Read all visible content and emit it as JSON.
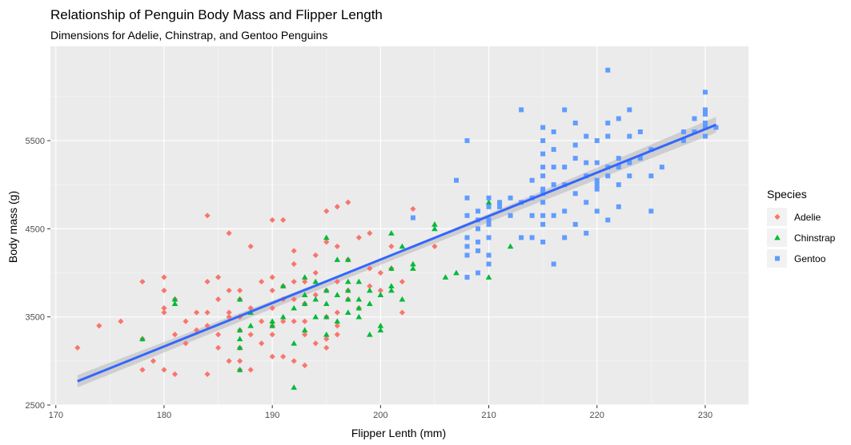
{
  "chart_data": {
    "type": "scatter",
    "title": "Relationship of Penguin Body Mass and Flipper Length",
    "subtitle": "Dimensions for Adelie, Chinstrap, and Gentoo Penguins",
    "xlabel": "Flipper Lenth (mm)",
    "ylabel": "Body mass (g)",
    "xlim": [
      169.5,
      234
    ],
    "ylim": [
      2500,
      6570
    ],
    "xticks": [
      170,
      180,
      190,
      200,
      210,
      220,
      230
    ],
    "yticks": [
      2500,
      3500,
      4500,
      5500
    ],
    "grid": true,
    "legend": {
      "title": "Species",
      "position": "right"
    },
    "trend": {
      "type": "linear-fit-with-confidence-band",
      "color": "#3366ff",
      "points": [
        [
          172,
          2770
        ],
        [
          231,
          5680
        ]
      ],
      "band": [
        [
          172,
          2840,
          2700
        ],
        [
          201,
          4200,
          4140
        ],
        [
          231,
          5770,
          5590
        ]
      ]
    },
    "series": [
      {
        "name": "Adelie",
        "marker": "diamond",
        "color": "#f8766d",
        "points": [
          [
            172,
            3150
          ],
          [
            174,
            3400
          ],
          [
            176,
            3450
          ],
          [
            178,
            3250
          ],
          [
            178,
            3900
          ],
          [
            178,
            2900
          ],
          [
            179,
            3000
          ],
          [
            180,
            3950
          ],
          [
            180,
            3800
          ],
          [
            180,
            3600
          ],
          [
            180,
            3550
          ],
          [
            180,
            2900
          ],
          [
            181,
            3700
          ],
          [
            181,
            3300
          ],
          [
            181,
            2850
          ],
          [
            182,
            3450
          ],
          [
            182,
            3200
          ],
          [
            183,
            3550
          ],
          [
            183,
            3350
          ],
          [
            184,
            4650
          ],
          [
            184,
            3900
          ],
          [
            184,
            3550
          ],
          [
            184,
            3400
          ],
          [
            184,
            2850
          ],
          [
            185,
            3700
          ],
          [
            185,
            3150
          ],
          [
            185,
            3950
          ],
          [
            185,
            3300
          ],
          [
            186,
            4450
          ],
          [
            186,
            3550
          ],
          [
            186,
            3000
          ],
          [
            186,
            3800
          ],
          [
            186,
            3500
          ],
          [
            187,
            3800
          ],
          [
            187,
            3500
          ],
          [
            187,
            3350
          ],
          [
            187,
            3150
          ],
          [
            187,
            2900
          ],
          [
            187,
            3700
          ],
          [
            187,
            3000
          ],
          [
            188,
            4300
          ],
          [
            188,
            3600
          ],
          [
            188,
            2900
          ],
          [
            188,
            3300
          ],
          [
            189,
            3900
          ],
          [
            189,
            3200
          ],
          [
            189,
            3450
          ],
          [
            190,
            4600
          ],
          [
            190,
            3950
          ],
          [
            190,
            3400
          ],
          [
            190,
            3050
          ],
          [
            190,
            3800
          ],
          [
            190,
            3300
          ],
          [
            190,
            3600
          ],
          [
            191,
            4600
          ],
          [
            191,
            3850
          ],
          [
            191,
            3450
          ],
          [
            191,
            3050
          ],
          [
            191,
            3700
          ],
          [
            192,
            4250
          ],
          [
            192,
            3450
          ],
          [
            192,
            3900
          ],
          [
            192,
            3700
          ],
          [
            192,
            4100
          ],
          [
            192,
            3000
          ],
          [
            193,
            3650
          ],
          [
            193,
            3300
          ],
          [
            193,
            2950
          ],
          [
            193,
            3900
          ],
          [
            193,
            3450
          ],
          [
            194,
            4200
          ],
          [
            194,
            3750
          ],
          [
            194,
            3200
          ],
          [
            194,
            4000
          ],
          [
            195,
            4700
          ],
          [
            195,
            4350
          ],
          [
            195,
            3500
          ],
          [
            195,
            3800
          ],
          [
            195,
            3250
          ],
          [
            195,
            3150
          ],
          [
            196,
            4750
          ],
          [
            196,
            4300
          ],
          [
            196,
            3550
          ],
          [
            196,
            3300
          ],
          [
            196,
            3900
          ],
          [
            196,
            3400
          ],
          [
            197,
            4800
          ],
          [
            197,
            4150
          ],
          [
            197,
            3700
          ],
          [
            197,
            3800
          ],
          [
            198,
            4400
          ],
          [
            198,
            3600
          ],
          [
            199,
            4050
          ],
          [
            199,
            3850
          ],
          [
            199,
            4450
          ],
          [
            200,
            4000
          ],
          [
            200,
            3800
          ],
          [
            201,
            4300
          ],
          [
            201,
            4050
          ],
          [
            202,
            3550
          ],
          [
            202,
            3900
          ],
          [
            203,
            4725
          ],
          [
            205,
            4300
          ]
        ]
      },
      {
        "name": "Chinstrap",
        "marker": "triangle",
        "color": "#00ba38",
        "points": [
          [
            178,
            3250
          ],
          [
            181,
            3700
          ],
          [
            181,
            3650
          ],
          [
            187,
            3700
          ],
          [
            187,
            3350
          ],
          [
            187,
            3150
          ],
          [
            187,
            2900
          ],
          [
            187,
            3250
          ],
          [
            188,
            3550
          ],
          [
            188,
            3400
          ],
          [
            190,
            3450
          ],
          [
            190,
            3400
          ],
          [
            191,
            3500
          ],
          [
            191,
            3850
          ],
          [
            192,
            2700
          ],
          [
            192,
            3600
          ],
          [
            192,
            3200
          ],
          [
            193,
            3650
          ],
          [
            193,
            3950
          ],
          [
            193,
            3350
          ],
          [
            193,
            3750
          ],
          [
            194,
            3700
          ],
          [
            194,
            3500
          ],
          [
            194,
            3900
          ],
          [
            195,
            4400
          ],
          [
            195,
            3650
          ],
          [
            195,
            3500
          ],
          [
            195,
            3800
          ],
          [
            195,
            3300
          ],
          [
            196,
            3750
          ],
          [
            196,
            3450
          ],
          [
            196,
            4150
          ],
          [
            197,
            4150
          ],
          [
            197,
            3700
          ],
          [
            197,
            3900
          ],
          [
            197,
            3550
          ],
          [
            197,
            3800
          ],
          [
            198,
            3700
          ],
          [
            198,
            3500
          ],
          [
            198,
            3900
          ],
          [
            198,
            3600
          ],
          [
            199,
            3300
          ],
          [
            199,
            3800
          ],
          [
            199,
            3650
          ],
          [
            200,
            3750
          ],
          [
            200,
            3400
          ],
          [
            200,
            3350
          ],
          [
            201,
            4450
          ],
          [
            201,
            4050
          ],
          [
            201,
            3800
          ],
          [
            201,
            3850
          ],
          [
            202,
            4300
          ],
          [
            202,
            3700
          ],
          [
            203,
            4100
          ],
          [
            203,
            4050
          ],
          [
            205,
            4550
          ],
          [
            205,
            4500
          ],
          [
            206,
            3950
          ],
          [
            207,
            4000
          ],
          [
            210,
            4800
          ],
          [
            210,
            3950
          ],
          [
            212,
            4300
          ]
        ]
      },
      {
        "name": "Gentoo",
        "marker": "square",
        "color": "#619cff",
        "points": [
          [
            203,
            4625
          ],
          [
            207,
            5050
          ],
          [
            208,
            5500
          ],
          [
            208,
            4850
          ],
          [
            208,
            4650
          ],
          [
            208,
            4400
          ],
          [
            208,
            4300
          ],
          [
            208,
            4200
          ],
          [
            208,
            3950
          ],
          [
            209,
            4700
          ],
          [
            209,
            4500
          ],
          [
            209,
            4600
          ],
          [
            209,
            4350
          ],
          [
            209,
            4250
          ],
          [
            209,
            4000
          ],
          [
            210,
            4550
          ],
          [
            210,
            4750
          ],
          [
            210,
            4400
          ],
          [
            210,
            4850
          ],
          [
            210,
            4200
          ],
          [
            210,
            4100
          ],
          [
            210,
            4600
          ],
          [
            211,
            4750
          ],
          [
            211,
            4800
          ],
          [
            212,
            4850
          ],
          [
            212,
            4650
          ],
          [
            213,
            5850
          ],
          [
            213,
            4400
          ],
          [
            213,
            4800
          ],
          [
            214,
            5050
          ],
          [
            214,
            4650
          ],
          [
            214,
            4400
          ],
          [
            214,
            4850
          ],
          [
            215,
            5650
          ],
          [
            215,
            5500
          ],
          [
            215,
            5350
          ],
          [
            215,
            5200
          ],
          [
            215,
            5100
          ],
          [
            215,
            4950
          ],
          [
            215,
            4900
          ],
          [
            215,
            4800
          ],
          [
            215,
            4650
          ],
          [
            215,
            4550
          ],
          [
            215,
            4350
          ],
          [
            216,
            5600
          ],
          [
            216,
            5400
          ],
          [
            216,
            5200
          ],
          [
            216,
            5000
          ],
          [
            216,
            4650
          ],
          [
            216,
            4100
          ],
          [
            217,
            5850
          ],
          [
            217,
            5200
          ],
          [
            217,
            5000
          ],
          [
            217,
            4700
          ],
          [
            217,
            4400
          ],
          [
            218,
            5700
          ],
          [
            218,
            5450
          ],
          [
            218,
            5300
          ],
          [
            218,
            4900
          ],
          [
            218,
            4550
          ],
          [
            219,
            5550
          ],
          [
            219,
            5250
          ],
          [
            219,
            5100
          ],
          [
            219,
            4800
          ],
          [
            219,
            4450
          ],
          [
            220,
            5500
          ],
          [
            220,
            5250
          ],
          [
            220,
            5050
          ],
          [
            220,
            5000
          ],
          [
            220,
            4950
          ],
          [
            220,
            4700
          ],
          [
            221,
            6300
          ],
          [
            221,
            5700
          ],
          [
            221,
            5550
          ],
          [
            221,
            5200
          ],
          [
            221,
            5100
          ],
          [
            221,
            4600
          ],
          [
            222,
            5750
          ],
          [
            222,
            5300
          ],
          [
            222,
            5200
          ],
          [
            222,
            5000
          ],
          [
            222,
            4750
          ],
          [
            223,
            5850
          ],
          [
            223,
            5550
          ],
          [
            223,
            5250
          ],
          [
            223,
            5100
          ],
          [
            224,
            5600
          ],
          [
            224,
            5300
          ],
          [
            225,
            5400
          ],
          [
            225,
            5100
          ],
          [
            225,
            4700
          ],
          [
            226,
            5200
          ],
          [
            228,
            5600
          ],
          [
            228,
            5500
          ],
          [
            229,
            5750
          ],
          [
            229,
            5600
          ],
          [
            230,
            6050
          ],
          [
            230,
            5850
          ],
          [
            230,
            5800
          ],
          [
            230,
            5700
          ],
          [
            230,
            5650
          ],
          [
            230,
            5550
          ],
          [
            231,
            5650
          ]
        ]
      }
    ]
  }
}
